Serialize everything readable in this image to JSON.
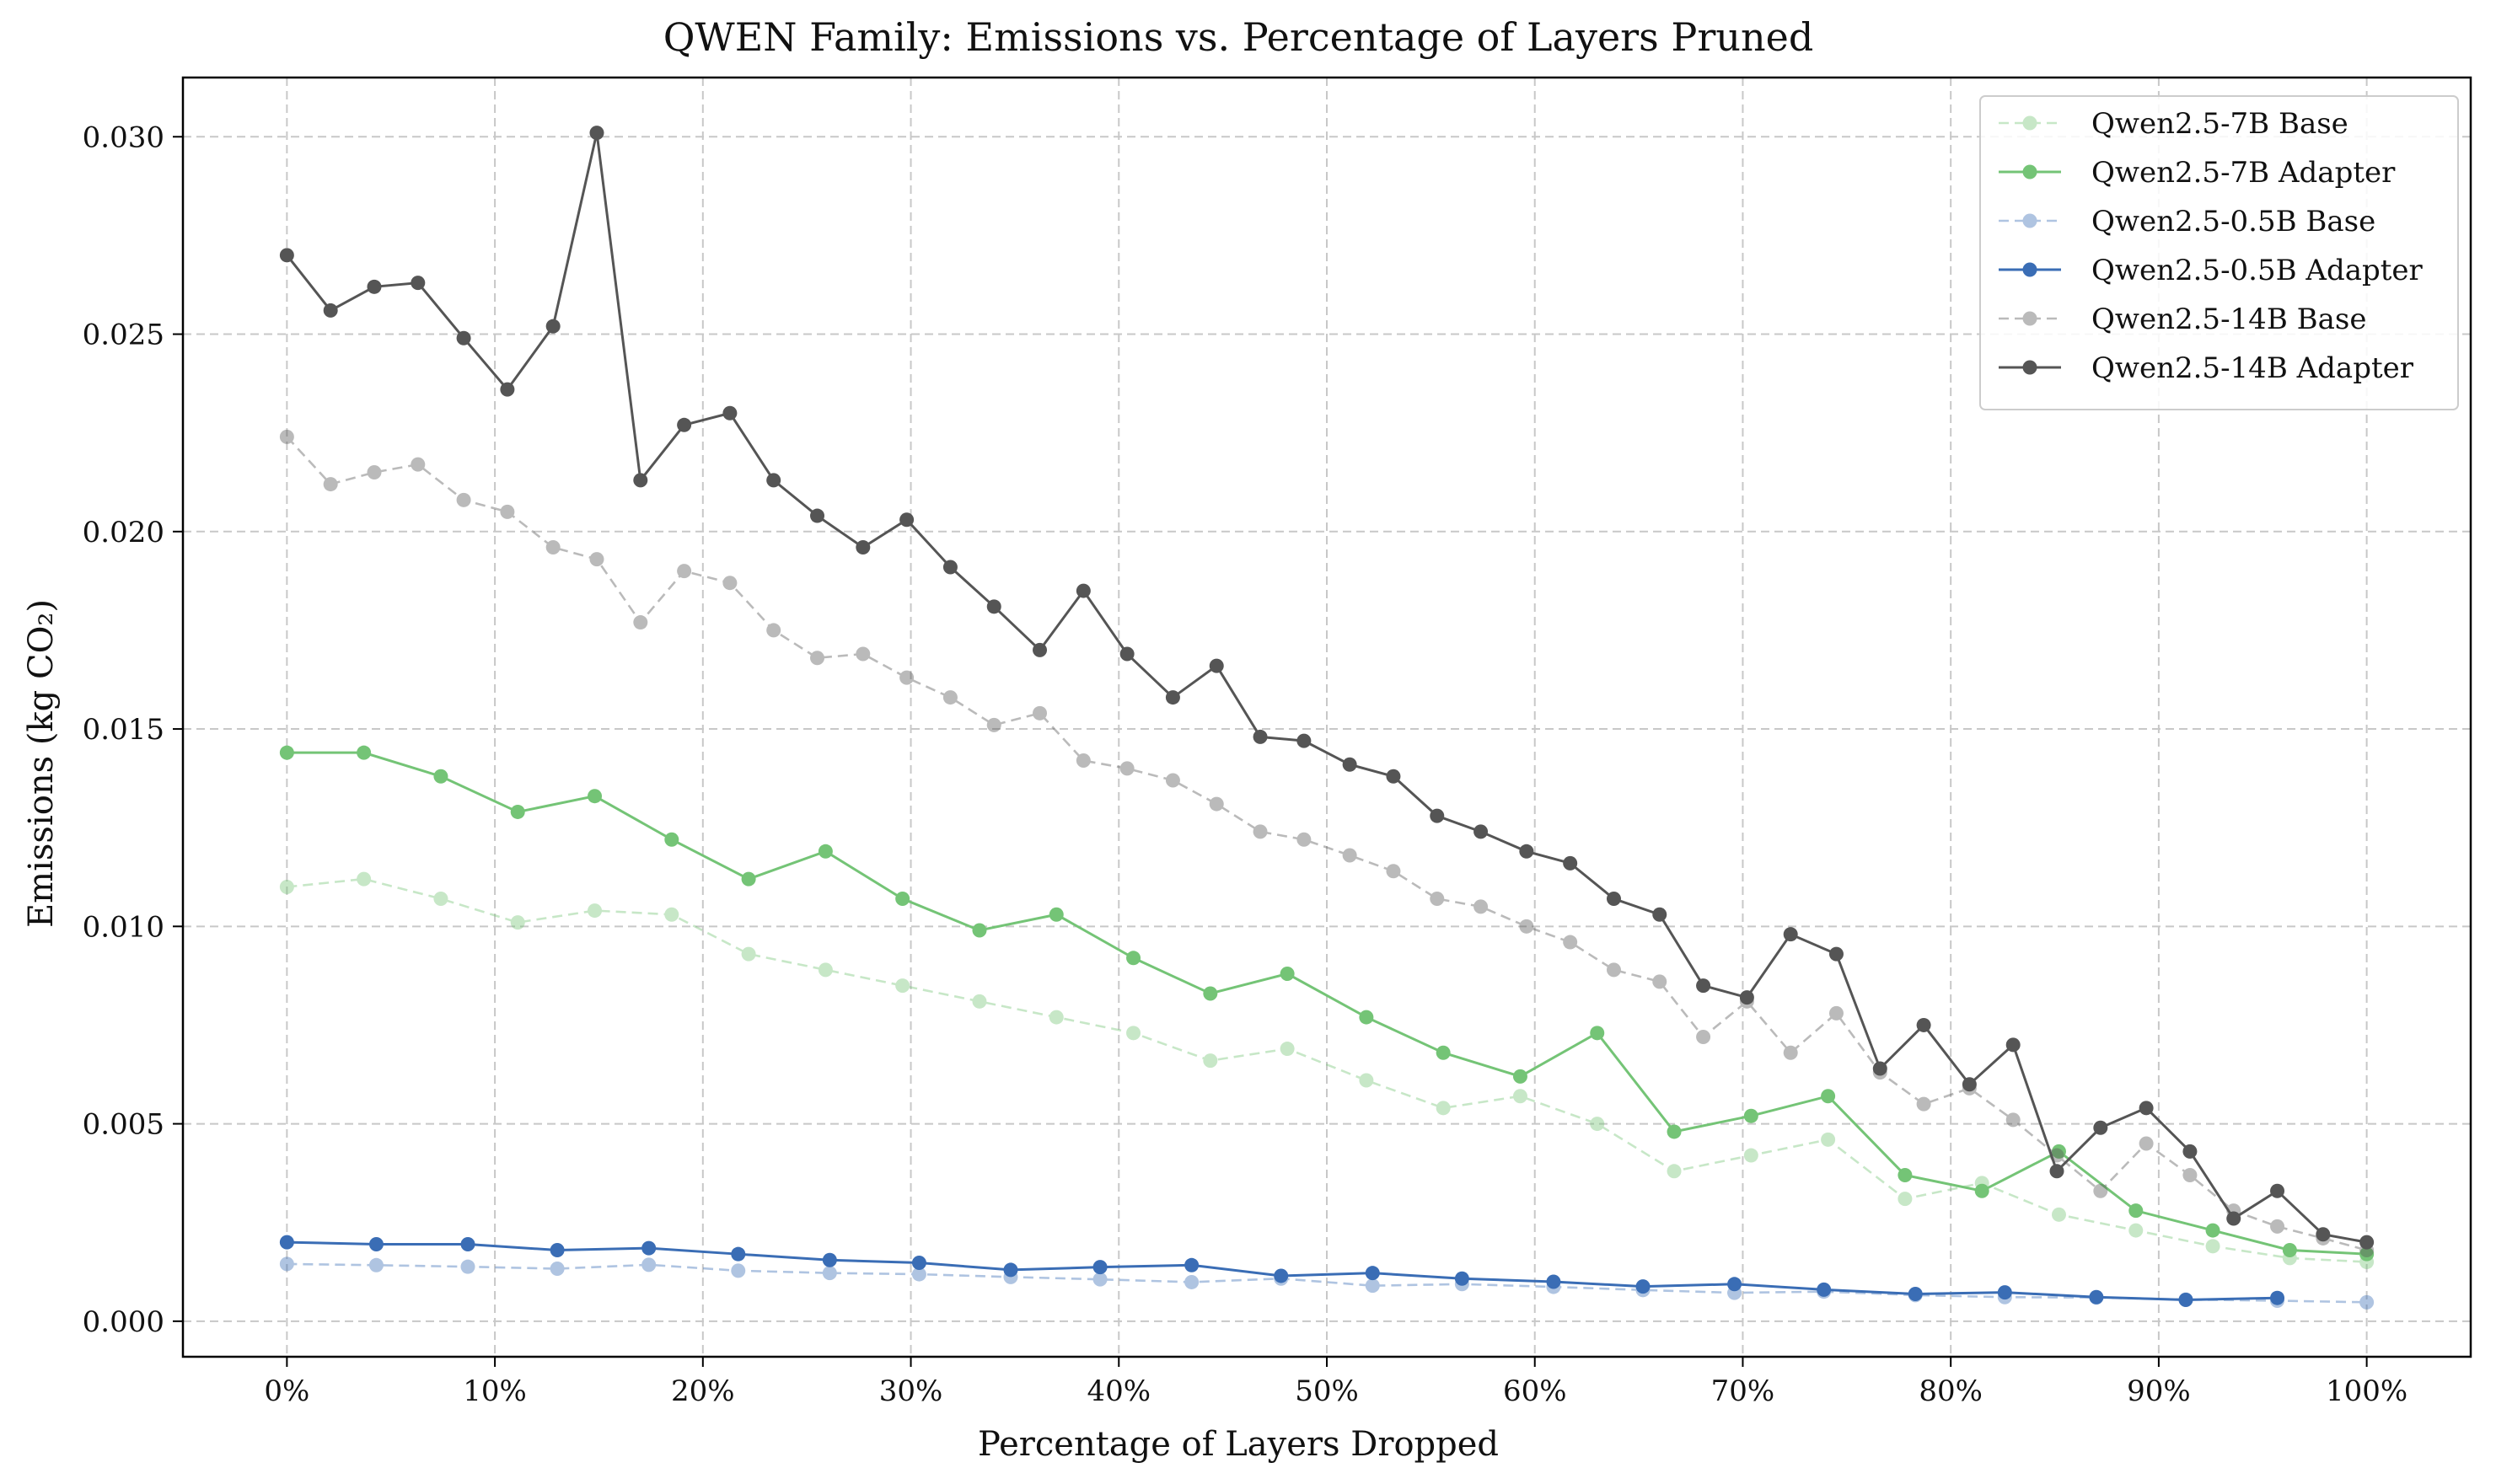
{
  "chart_data": {
    "type": "line",
    "title": "QWEN Family: Emissions vs. Percentage of Layers Pruned",
    "xlabel": "Percentage of Layers Dropped",
    "ylabel": "Emissions (kg CO₂)",
    "xlim": [
      -5,
      105
    ],
    "ylim": [
      -0.0009,
      0.0315
    ],
    "x_ticks": [
      0,
      10,
      20,
      30,
      40,
      50,
      60,
      70,
      80,
      90,
      100
    ],
    "x_tick_labels": [
      "0%",
      "10%",
      "20%",
      "30%",
      "40%",
      "50%",
      "60%",
      "70%",
      "80%",
      "90%",
      "100%"
    ],
    "y_ticks": [
      0.0,
      0.005,
      0.01,
      0.015,
      0.02,
      0.025,
      0.03
    ],
    "y_tick_labels": [
      "0.000",
      "0.005",
      "0.010",
      "0.015",
      "0.020",
      "0.025",
      "0.030"
    ],
    "grid": true,
    "legend_position": "top-right",
    "series": [
      {
        "name": "Qwen2.5-7B Base",
        "color": "#74c476",
        "style": "dashed",
        "alpha": 0.4,
        "x": [
          0,
          3.7,
          7.4,
          11.1,
          14.8,
          18.5,
          22.2,
          25.9,
          29.6,
          33.3,
          37.0,
          40.7,
          44.4,
          48.1,
          51.9,
          55.6,
          59.3,
          63.0,
          66.7,
          70.4,
          74.1,
          77.8,
          81.5,
          85.2,
          88.9,
          92.6,
          96.3,
          100
        ],
        "y": [
          0.011,
          0.0112,
          0.0107,
          0.0101,
          0.0104,
          0.0103,
          0.0093,
          0.0089,
          0.0085,
          0.0081,
          0.0077,
          0.0073,
          0.0066,
          0.0069,
          0.0061,
          0.0054,
          0.0057,
          0.005,
          0.0038,
          0.0042,
          0.0046,
          0.0031,
          0.0035,
          0.0027,
          0.0023,
          0.0019,
          0.0016,
          0.0015
        ]
      },
      {
        "name": "Qwen2.5-7B Adapter",
        "color": "#74c476",
        "style": "solid",
        "alpha": 1.0,
        "x": [
          0,
          3.7,
          7.4,
          11.1,
          14.8,
          18.5,
          22.2,
          25.9,
          29.6,
          33.3,
          37.0,
          40.7,
          44.4,
          48.1,
          51.9,
          55.6,
          59.3,
          63.0,
          66.7,
          70.4,
          74.1,
          77.8,
          81.5,
          85.2,
          88.9,
          92.6,
          96.3,
          100
        ],
        "y": [
          0.0144,
          0.0144,
          0.0138,
          0.0129,
          0.0133,
          0.0122,
          0.0112,
          0.0119,
          0.0107,
          0.0099,
          0.0103,
          0.0092,
          0.0083,
          0.0088,
          0.0077,
          0.0068,
          0.0062,
          0.0073,
          0.0048,
          0.0052,
          0.0057,
          0.0037,
          0.0033,
          0.0043,
          0.0028,
          0.0023,
          0.0018,
          0.0017
        ]
      },
      {
        "name": "Qwen2.5-0.5B Base",
        "color": "#3a6db5",
        "style": "dashed",
        "alpha": 0.4,
        "x": [
          0,
          4.3,
          8.7,
          13.0,
          17.4,
          21.7,
          26.1,
          30.4,
          34.8,
          39.1,
          43.5,
          47.8,
          52.2,
          56.5,
          60.9,
          65.2,
          69.6,
          73.9,
          78.3,
          82.6,
          87.0,
          91.3,
          95.7,
          100
        ],
        "y": [
          0.00145,
          0.00142,
          0.00138,
          0.00133,
          0.00143,
          0.00128,
          0.00122,
          0.00119,
          0.00112,
          0.00106,
          0.00099,
          0.00108,
          0.0009,
          0.00094,
          0.00087,
          0.00079,
          0.00072,
          0.00075,
          0.00066,
          0.00061,
          0.0006,
          0.00055,
          0.00052,
          0.00048
        ]
      },
      {
        "name": "Qwen2.5-0.5B Adapter",
        "color": "#3a6db5",
        "style": "solid",
        "alpha": 1.0,
        "x": [
          0,
          4.3,
          8.7,
          13.0,
          17.4,
          21.7,
          26.1,
          30.4,
          34.8,
          39.1,
          43.5,
          47.8,
          52.2,
          56.5,
          60.9,
          65.2,
          69.6,
          73.9,
          78.3,
          82.6,
          87.0,
          91.3,
          95.7
        ],
        "y": [
          0.002,
          0.00195,
          0.00195,
          0.0018,
          0.00185,
          0.0017,
          0.00155,
          0.00148,
          0.0013,
          0.00137,
          0.00142,
          0.00115,
          0.00122,
          0.00108,
          0.001,
          0.00088,
          0.00094,
          0.0008,
          0.00069,
          0.00073,
          0.00061,
          0.00054,
          0.00059
        ]
      },
      {
        "name": "Qwen2.5-14B Base",
        "color": "#555555",
        "style": "dashed",
        "alpha": 0.4,
        "x": [
          0,
          2.1,
          4.2,
          6.3,
          8.5,
          10.6,
          12.8,
          14.9,
          17.0,
          19.1,
          21.3,
          23.4,
          25.5,
          27.7,
          29.8,
          31.9,
          34.0,
          36.2,
          38.3,
          40.4,
          42.6,
          44.7,
          46.8,
          48.9,
          51.1,
          53.2,
          55.3,
          57.4,
          59.6,
          61.7,
          63.8,
          66.0,
          68.1,
          70.2,
          72.3,
          74.5,
          76.6,
          78.7,
          80.9,
          83.0,
          85.1,
          87.2,
          89.4,
          91.5,
          93.6,
          95.7,
          97.9,
          100
        ],
        "y": [
          0.0224,
          0.0212,
          0.0215,
          0.0217,
          0.0208,
          0.0205,
          0.0196,
          0.0193,
          0.0177,
          0.019,
          0.0187,
          0.0175,
          0.0168,
          0.0169,
          0.0163,
          0.0158,
          0.0151,
          0.0154,
          0.0142,
          0.014,
          0.0137,
          0.0131,
          0.0124,
          0.0122,
          0.0118,
          0.0114,
          0.0107,
          0.0105,
          0.01,
          0.0096,
          0.0089,
          0.0086,
          0.0072,
          0.0081,
          0.0068,
          0.0078,
          0.0063,
          0.0055,
          0.0059,
          0.0051,
          0.0042,
          0.0033,
          0.0045,
          0.0037,
          0.0028,
          0.0024,
          0.0021,
          0.0018
        ]
      },
      {
        "name": "Qwen2.5-14B Adapter",
        "color": "#555555",
        "style": "solid",
        "alpha": 1.0,
        "x": [
          0,
          2.1,
          4.2,
          6.3,
          8.5,
          10.6,
          12.8,
          14.9,
          17.0,
          19.1,
          21.3,
          23.4,
          25.5,
          27.7,
          29.8,
          31.9,
          34.0,
          36.2,
          38.3,
          40.4,
          42.6,
          44.7,
          46.8,
          48.9,
          51.1,
          53.2,
          55.3,
          57.4,
          59.6,
          61.7,
          63.8,
          66.0,
          68.1,
          70.2,
          72.3,
          74.5,
          76.6,
          78.7,
          80.9,
          83.0,
          85.1,
          87.2,
          89.4,
          91.5,
          93.6,
          95.7,
          97.9,
          100
        ],
        "y": [
          0.027,
          0.0256,
          0.0262,
          0.0263,
          0.0249,
          0.0236,
          0.0252,
          0.0301,
          0.0213,
          0.0227,
          0.023,
          0.0213,
          0.0204,
          0.0196,
          0.0203,
          0.0191,
          0.0181,
          0.017,
          0.0185,
          0.0169,
          0.0158,
          0.0166,
          0.0148,
          0.0147,
          0.0141,
          0.0138,
          0.0128,
          0.0124,
          0.0119,
          0.0116,
          0.0107,
          0.0103,
          0.0085,
          0.0082,
          0.0098,
          0.0093,
          0.0064,
          0.0075,
          0.006,
          0.007,
          0.0038,
          0.0049,
          0.0054,
          0.0043,
          0.0026,
          0.0033,
          0.0022,
          0.002
        ]
      }
    ]
  }
}
